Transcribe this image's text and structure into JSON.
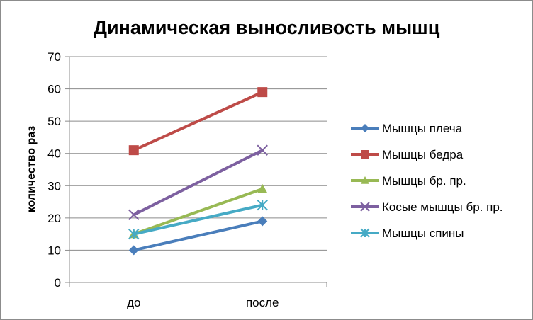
{
  "chart_data": {
    "type": "line",
    "title": "Динамическая выносливость мышц",
    "xlabel": "",
    "ylabel": "количество раз",
    "categories": [
      "до",
      "после"
    ],
    "ylim": [
      0,
      70
    ],
    "yticks": [
      0,
      10,
      20,
      30,
      40,
      50,
      60,
      70
    ],
    "grid": true,
    "legend_position": "right",
    "series": [
      {
        "name": "Мышцы плеча",
        "values": [
          10,
          19
        ],
        "color": "#4a7ebb",
        "marker": "diamond"
      },
      {
        "name": "Мышцы бедра",
        "values": [
          41,
          59
        ],
        "color": "#be4b48",
        "marker": "square"
      },
      {
        "name": "Мышцы бр. пр.",
        "values": [
          15,
          29
        ],
        "color": "#98b954",
        "marker": "triangle"
      },
      {
        "name": "Косые мышцы бр. пр.",
        "values": [
          21,
          41
        ],
        "color": "#7d60a0",
        "marker": "x"
      },
      {
        "name": "Мышцы спины",
        "values": [
          15,
          24
        ],
        "color": "#46aac5",
        "marker": "star"
      }
    ]
  }
}
